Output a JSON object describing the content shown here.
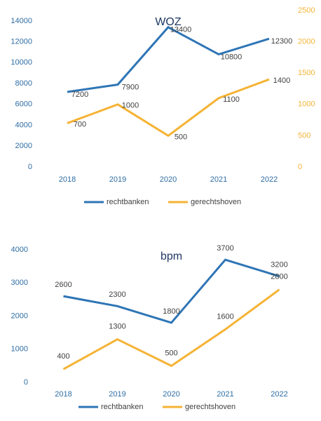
{
  "chart_data": [
    {
      "type": "line",
      "title": "WOZ",
      "categories": [
        "2018",
        "2019",
        "2020",
        "2021",
        "2022"
      ],
      "series": [
        {
          "name": "rechtbanken",
          "color": "#2e75b6",
          "values": [
            7200,
            7900,
            13400,
            10800,
            12300
          ]
        },
        {
          "name": "gerechtshoven",
          "color": "#f5b335",
          "axis": "y2",
          "values": [
            700,
            1000,
            500,
            1100,
            1400
          ]
        }
      ],
      "ylim": [
        0,
        15000
      ],
      "yticks": [
        0,
        2000,
        4000,
        6000,
        8000,
        10000,
        12000,
        14000
      ],
      "y2lim": [
        0,
        2500
      ],
      "y2ticks": [
        0,
        500,
        1000,
        1500,
        2000,
        2500
      ],
      "legend": "bottom",
      "grid": false
    },
    {
      "type": "line",
      "title": "bpm",
      "categories": [
        "2018",
        "2019",
        "2020",
        "2021",
        "2022"
      ],
      "series": [
        {
          "name": "rechtbanken",
          "color": "#2e75b6",
          "values": [
            2600,
            2300,
            1800,
            3700,
            3200
          ]
        },
        {
          "name": "gerechtshoven",
          "color": "#f5b335",
          "values": [
            400,
            1300,
            500,
            1600,
            2800
          ]
        }
      ],
      "ylim": [
        0,
        4000
      ],
      "yticks": [
        0,
        1000,
        2000,
        3000,
        4000
      ],
      "legend": "bottom",
      "grid": false
    }
  ]
}
